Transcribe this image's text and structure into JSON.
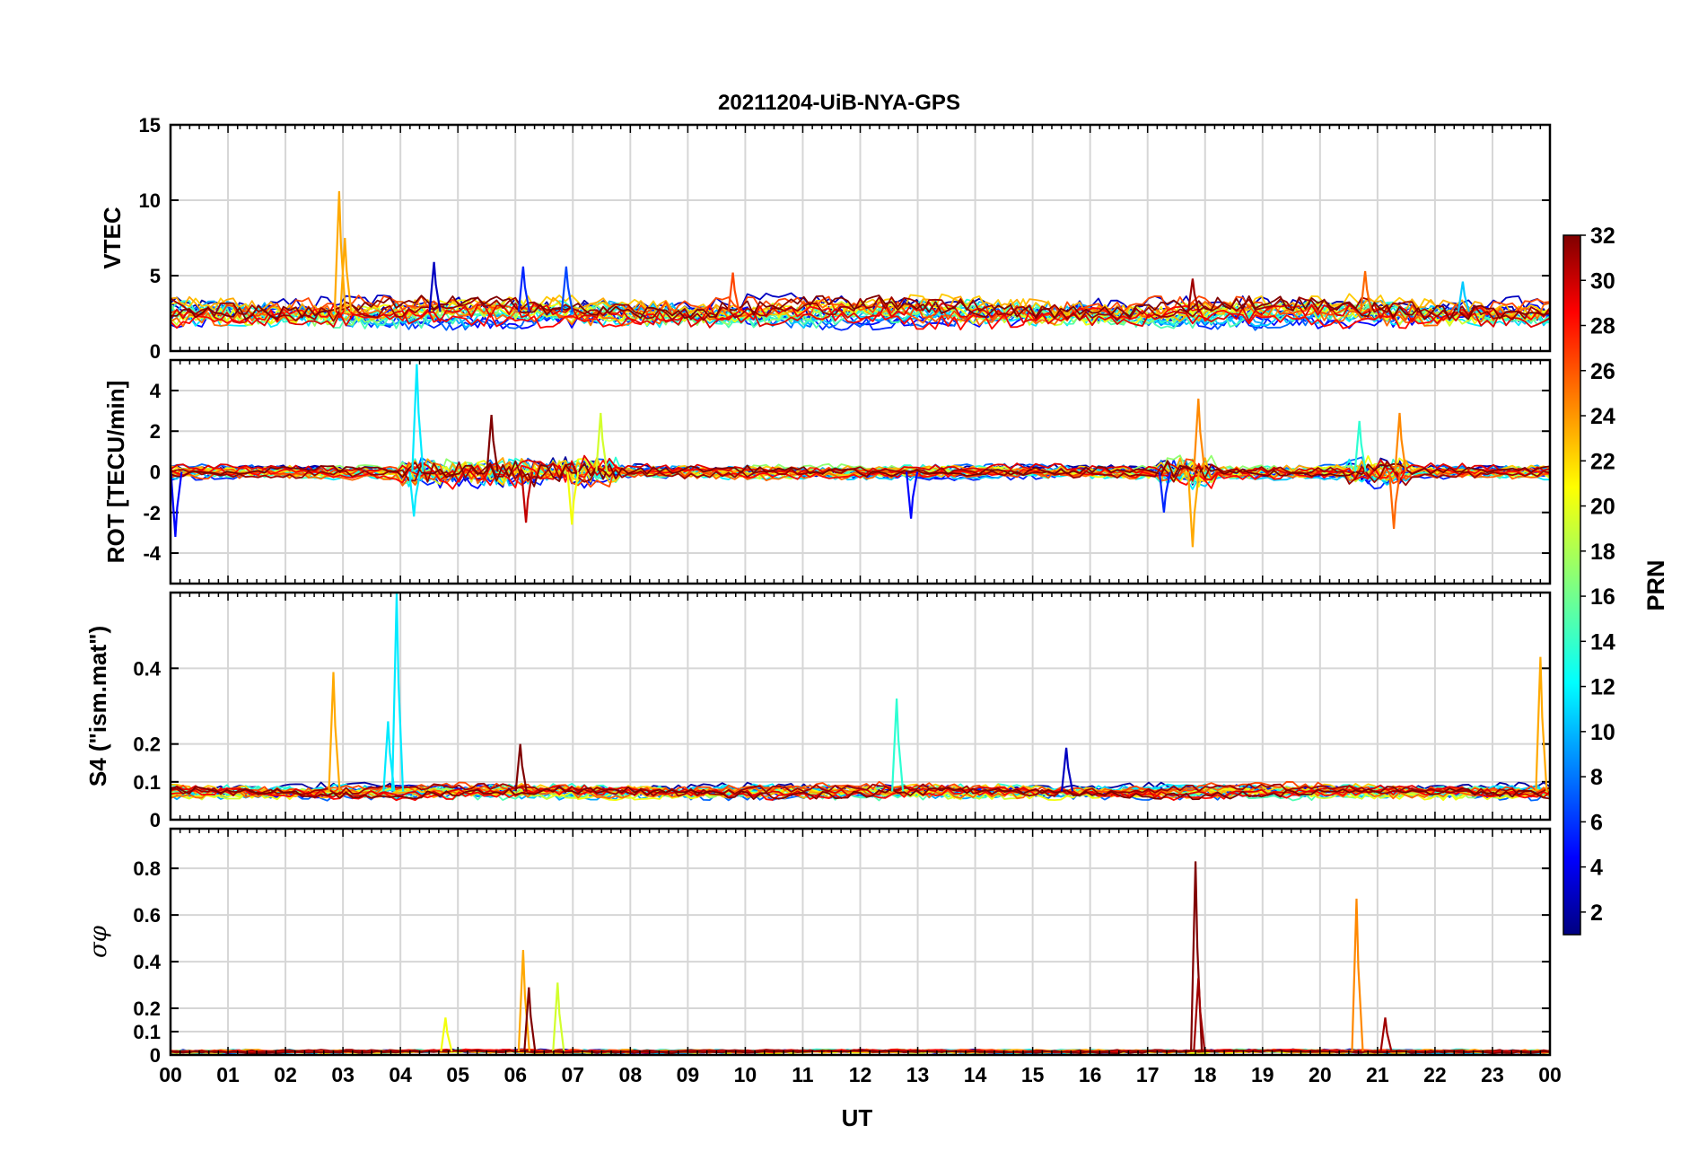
{
  "chart_data": {
    "type": "line",
    "title": "20211204-UiB-NYA-GPS",
    "xlabel": "UT",
    "x_range_hours": [
      0,
      24
    ],
    "x_tick_labels": [
      "00",
      "01",
      "02",
      "03",
      "04",
      "05",
      "06",
      "07",
      "08",
      "09",
      "10",
      "11",
      "12",
      "13",
      "14",
      "15",
      "16",
      "17",
      "18",
      "19",
      "20",
      "21",
      "22",
      "23",
      "00"
    ],
    "grid": true,
    "panels": [
      {
        "id": "vtec",
        "ylabel": "VTEC",
        "ylim": [
          0,
          15
        ],
        "y_ticks": [
          0,
          5,
          10,
          15
        ],
        "y_tick_labels": [
          "0",
          "5",
          "10",
          "15"
        ],
        "baseline": 2.6,
        "noise": 1.0,
        "spikes": [
          {
            "t": 2.95,
            "value": 10.6,
            "prn": 23
          },
          {
            "t": 3.05,
            "value": 7.5,
            "prn": 23
          },
          {
            "t": 4.6,
            "value": 5.9,
            "prn": 3
          },
          {
            "t": 6.15,
            "value": 5.6,
            "prn": 6
          },
          {
            "t": 6.9,
            "value": 5.6,
            "prn": 7
          },
          {
            "t": 9.8,
            "value": 5.2,
            "prn": 26
          },
          {
            "t": 17.8,
            "value": 4.8,
            "prn": 31
          },
          {
            "t": 20.8,
            "value": 5.3,
            "prn": 25
          },
          {
            "t": 22.5,
            "value": 4.6,
            "prn": 11
          }
        ]
      },
      {
        "id": "rot",
        "ylabel": "ROT [TECU/min]",
        "ylim": [
          -5.5,
          5.5
        ],
        "y_ticks": [
          -4,
          -2,
          0,
          2,
          4
        ],
        "y_tick_labels": [
          "-4",
          "-2",
          "0",
          "2",
          "4"
        ],
        "baseline": 0.0,
        "noise": 0.35,
        "spikes": [
          {
            "t": 4.3,
            "value": 5.3,
            "prn": 12
          },
          {
            "t": 4.25,
            "value": -2.2,
            "prn": 12
          },
          {
            "t": 5.6,
            "value": 2.8,
            "prn": 32
          },
          {
            "t": 6.2,
            "value": -2.5,
            "prn": 30
          },
          {
            "t": 7.0,
            "value": -2.6,
            "prn": 20
          },
          {
            "t": 7.5,
            "value": 2.9,
            "prn": 19
          },
          {
            "t": 0.1,
            "value": -3.2,
            "prn": 5
          },
          {
            "t": 12.9,
            "value": -2.3,
            "prn": 5
          },
          {
            "t": 17.8,
            "value": -3.7,
            "prn": 23
          },
          {
            "t": 17.9,
            "value": 3.6,
            "prn": 24
          },
          {
            "t": 17.3,
            "value": -2.0,
            "prn": 6
          },
          {
            "t": 20.7,
            "value": 2.5,
            "prn": 14
          },
          {
            "t": 21.4,
            "value": 2.9,
            "prn": 24
          },
          {
            "t": 21.3,
            "value": -2.8,
            "prn": 25
          }
        ]
      },
      {
        "id": "s4",
        "ylabel": "S4 (\"ism.mat\")",
        "ylim": [
          0,
          0.6
        ],
        "y_ticks": [
          0,
          0.1,
          0.2,
          0.4
        ],
        "y_tick_labels": [
          "0",
          "0.1",
          "0.2",
          "0.4"
        ],
        "baseline": 0.075,
        "noise": 0.02,
        "spikes": [
          {
            "t": 2.85,
            "value": 0.39,
            "prn": 23
          },
          {
            "t": 3.95,
            "value": 0.6,
            "prn": 12
          },
          {
            "t": 3.8,
            "value": 0.26,
            "prn": 12
          },
          {
            "t": 6.1,
            "value": 0.2,
            "prn": 32
          },
          {
            "t": 12.65,
            "value": 0.32,
            "prn": 14
          },
          {
            "t": 23.85,
            "value": 0.43,
            "prn": 23
          },
          {
            "t": 15.6,
            "value": 0.19,
            "prn": 3
          }
        ]
      },
      {
        "id": "sigma_phi",
        "ylabel": "σφ",
        "ylim": [
          0,
          0.97
        ],
        "y_ticks": [
          0,
          0.1,
          0.2,
          0.4,
          0.6,
          0.8
        ],
        "y_tick_labels": [
          "0",
          "0.1",
          "0.2",
          "0.4",
          "0.6",
          "0.8"
        ],
        "baseline": 0.015,
        "noise": 0.008,
        "spikes": [
          {
            "t": 6.15,
            "value": 0.45,
            "prn": 23
          },
          {
            "t": 6.25,
            "value": 0.29,
            "prn": 32
          },
          {
            "t": 6.75,
            "value": 0.31,
            "prn": 19
          },
          {
            "t": 4.8,
            "value": 0.16,
            "prn": 20
          },
          {
            "t": 17.85,
            "value": 0.83,
            "prn": 32
          },
          {
            "t": 17.9,
            "value": 0.33,
            "prn": 31
          },
          {
            "t": 20.65,
            "value": 0.67,
            "prn": 24
          },
          {
            "t": 21.15,
            "value": 0.16,
            "prn": 31
          }
        ]
      }
    ],
    "colorbar": {
      "label": "PRN",
      "range": [
        1,
        32
      ],
      "tick_labels": [
        "2",
        "4",
        "6",
        "8",
        "10",
        "12",
        "14",
        "16",
        "18",
        "20",
        "22",
        "24",
        "26",
        "28",
        "30",
        "32"
      ],
      "colormap": "jet"
    },
    "series_prn": [
      2,
      3,
      5,
      6,
      8,
      10,
      11,
      12,
      14,
      15,
      17,
      19,
      20,
      22,
      23,
      25,
      26,
      28,
      29,
      31,
      32
    ]
  }
}
